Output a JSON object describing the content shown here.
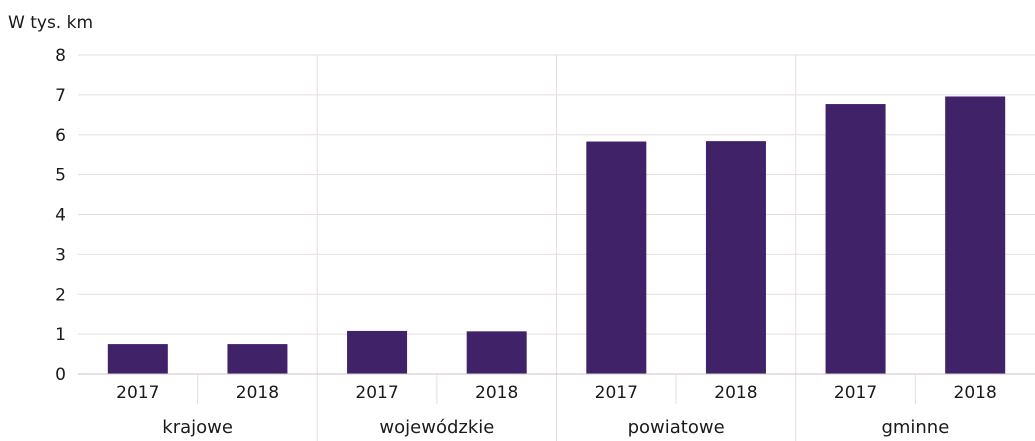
{
  "chart_data": {
    "type": "bar",
    "ylabel": "W tys. km",
    "ylim": [
      0,
      8
    ],
    "yticks": [
      0,
      1,
      2,
      3,
      4,
      5,
      6,
      7,
      8
    ],
    "grid": true,
    "bar_color": "#3f2267",
    "groups": [
      "krajowe",
      "wojewódzkie",
      "powiatowe",
      "gminne"
    ],
    "categories": [
      "2017",
      "2018",
      "2017",
      "2018",
      "2017",
      "2018",
      "2017",
      "2018"
    ],
    "values": [
      0.75,
      0.75,
      1.08,
      1.07,
      5.83,
      5.84,
      6.77,
      6.96
    ]
  }
}
